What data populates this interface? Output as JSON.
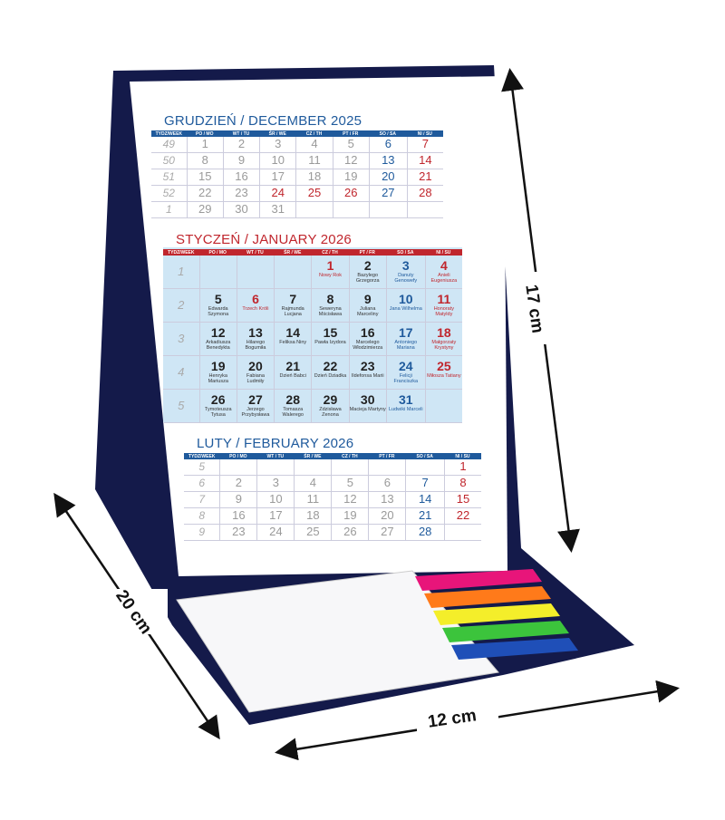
{
  "colors": {
    "stand": "#141a4a",
    "blue": "#1f5a9c",
    "red": "#c0262d",
    "gray": "#9a9a9a",
    "dark": "#222",
    "jan_bg": "#cfe6f5"
  },
  "weekdays": [
    "TYDZ/WEEK",
    "PO / MO",
    "WT / TU",
    "ŚR / WE",
    "CZ / TH",
    "PT / FR",
    "SO / SA",
    "NI / SU"
  ],
  "months": [
    {
      "title": "GRUDZIEŃ / DECEMBER 2025",
      "color": "blue",
      "rows": [
        {
          "week": "49",
          "days": [
            [
              "1",
              "g"
            ],
            [
              "2",
              "g"
            ],
            [
              "3",
              "g"
            ],
            [
              "4",
              "g"
            ],
            [
              "5",
              "g"
            ],
            [
              "6",
              "b"
            ],
            [
              "7",
              "r"
            ]
          ]
        },
        {
          "week": "50",
          "days": [
            [
              "8",
              "g"
            ],
            [
              "9",
              "g"
            ],
            [
              "10",
              "g"
            ],
            [
              "11",
              "g"
            ],
            [
              "12",
              "g"
            ],
            [
              "13",
              "b"
            ],
            [
              "14",
              "r"
            ]
          ]
        },
        {
          "week": "51",
          "days": [
            [
              "15",
              "g"
            ],
            [
              "16",
              "g"
            ],
            [
              "17",
              "g"
            ],
            [
              "18",
              "g"
            ],
            [
              "19",
              "g"
            ],
            [
              "20",
              "b"
            ],
            [
              "21",
              "r"
            ]
          ]
        },
        {
          "week": "52",
          "days": [
            [
              "22",
              "g"
            ],
            [
              "23",
              "g"
            ],
            [
              "24",
              "r"
            ],
            [
              "25",
              "r"
            ],
            [
              "26",
              "r"
            ],
            [
              "27",
              "b"
            ],
            [
              "28",
              "r"
            ]
          ]
        },
        {
          "week": "1",
          "days": [
            [
              "29",
              "g"
            ],
            [
              "30",
              "g"
            ],
            [
              "31",
              "g"
            ],
            [
              "",
              ""
            ],
            [
              "",
              ""
            ],
            [
              "",
              ""
            ],
            [
              "",
              ""
            ]
          ]
        }
      ]
    },
    {
      "title": "STYCZEŃ / JANUARY 2026",
      "color": "red",
      "rows": [
        {
          "week": "1",
          "days": [
            [
              "",
              "",
              ""
            ],
            [
              "",
              "",
              ""
            ],
            [
              "",
              "",
              ""
            ],
            [
              "1",
              "r",
              "Nowy Rok"
            ],
            [
              "2",
              "k",
              "Bazylego Grzegorza"
            ],
            [
              "3",
              "b",
              "Danuty Genowefy"
            ],
            [
              "4",
              "r",
              "Anieli Eugeniusza"
            ]
          ]
        },
        {
          "week": "2",
          "days": [
            [
              "5",
              "k",
              "Edwarda Szymona"
            ],
            [
              "6",
              "r",
              "Trzech Króli"
            ],
            [
              "7",
              "k",
              "Rajmunda Lucjana"
            ],
            [
              "8",
              "k",
              "Seweryna Mścisława"
            ],
            [
              "9",
              "k",
              "Juliana Marceliny"
            ],
            [
              "10",
              "b",
              "Jana Wilhelma"
            ],
            [
              "11",
              "r",
              "Honoraty Matyldy"
            ]
          ]
        },
        {
          "week": "3",
          "days": [
            [
              "12",
              "k",
              "Arkadiusza Benedykta"
            ],
            [
              "13",
              "k",
              "Hilarego Bogumiła"
            ],
            [
              "14",
              "k",
              "Feliksa Niny"
            ],
            [
              "15",
              "k",
              "Pawła Izydora"
            ],
            [
              "16",
              "k",
              "Marcelego Włodzimierza"
            ],
            [
              "17",
              "b",
              "Antoniego Mariana"
            ],
            [
              "18",
              "r",
              "Małgorzaty Krystyny"
            ]
          ]
        },
        {
          "week": "4",
          "days": [
            [
              "19",
              "k",
              "Henryka Mariusza"
            ],
            [
              "20",
              "k",
              "Fabiana Ludmiły"
            ],
            [
              "21",
              "k",
              "Dzień Babci"
            ],
            [
              "22",
              "k",
              "Dzień Dziadka"
            ],
            [
              "23",
              "k",
              "Ildefonsa Marii"
            ],
            [
              "24",
              "b",
              "Felicji Franciszka"
            ],
            [
              "25",
              "r",
              "Miłosza Tatiany"
            ]
          ]
        },
        {
          "week": "5",
          "days": [
            [
              "26",
              "k",
              "Tymoteusza Tytusa"
            ],
            [
              "27",
              "k",
              "Jerzego Przybysława"
            ],
            [
              "28",
              "k",
              "Tomasza Walerego"
            ],
            [
              "29",
              "k",
              "Zdzisława Zenona"
            ],
            [
              "30",
              "k",
              "Macieja Martyny"
            ],
            [
              "31",
              "b",
              "Ludwiki Marceli"
            ],
            [
              "",
              "",
              ""
            ]
          ]
        }
      ]
    },
    {
      "title": "LUTY / FEBRUARY 2026",
      "color": "blue",
      "rows": [
        {
          "week": "5",
          "days": [
            [
              "",
              ""
            ],
            [
              "",
              ""
            ],
            [
              "",
              ""
            ],
            [
              "",
              ""
            ],
            [
              "",
              ""
            ],
            [
              "",
              ""
            ],
            [
              "1",
              "r"
            ]
          ]
        },
        {
          "week": "6",
          "days": [
            [
              "2",
              "g"
            ],
            [
              "3",
              "g"
            ],
            [
              "4",
              "g"
            ],
            [
              "5",
              "g"
            ],
            [
              "6",
              "g"
            ],
            [
              "7",
              "b"
            ],
            [
              "8",
              "r"
            ]
          ]
        },
        {
          "week": "7",
          "days": [
            [
              "9",
              "g"
            ],
            [
              "10",
              "g"
            ],
            [
              "11",
              "g"
            ],
            [
              "12",
              "g"
            ],
            [
              "13",
              "g"
            ],
            [
              "14",
              "b"
            ],
            [
              "15",
              "r"
            ]
          ]
        },
        {
          "week": "8",
          "days": [
            [
              "16",
              "g"
            ],
            [
              "17",
              "g"
            ],
            [
              "18",
              "g"
            ],
            [
              "19",
              "g"
            ],
            [
              "20",
              "g"
            ],
            [
              "21",
              "b"
            ],
            [
              "22",
              "r"
            ]
          ]
        },
        {
          "week": "9",
          "days": [
            [
              "23",
              "g"
            ],
            [
              "24",
              "g"
            ],
            [
              "25",
              "g"
            ],
            [
              "26",
              "g"
            ],
            [
              "27",
              "g"
            ],
            [
              "28",
              "b"
            ],
            [
              "",
              ""
            ]
          ]
        }
      ]
    }
  ],
  "dimensions": {
    "height": "17 cm",
    "depth": "20 cm",
    "width": "12 cm"
  },
  "sticky_tab_colors": [
    "#e8157a",
    "#ff7a1a",
    "#f4ee2a",
    "#3cc43c",
    "#1f4fb8"
  ]
}
